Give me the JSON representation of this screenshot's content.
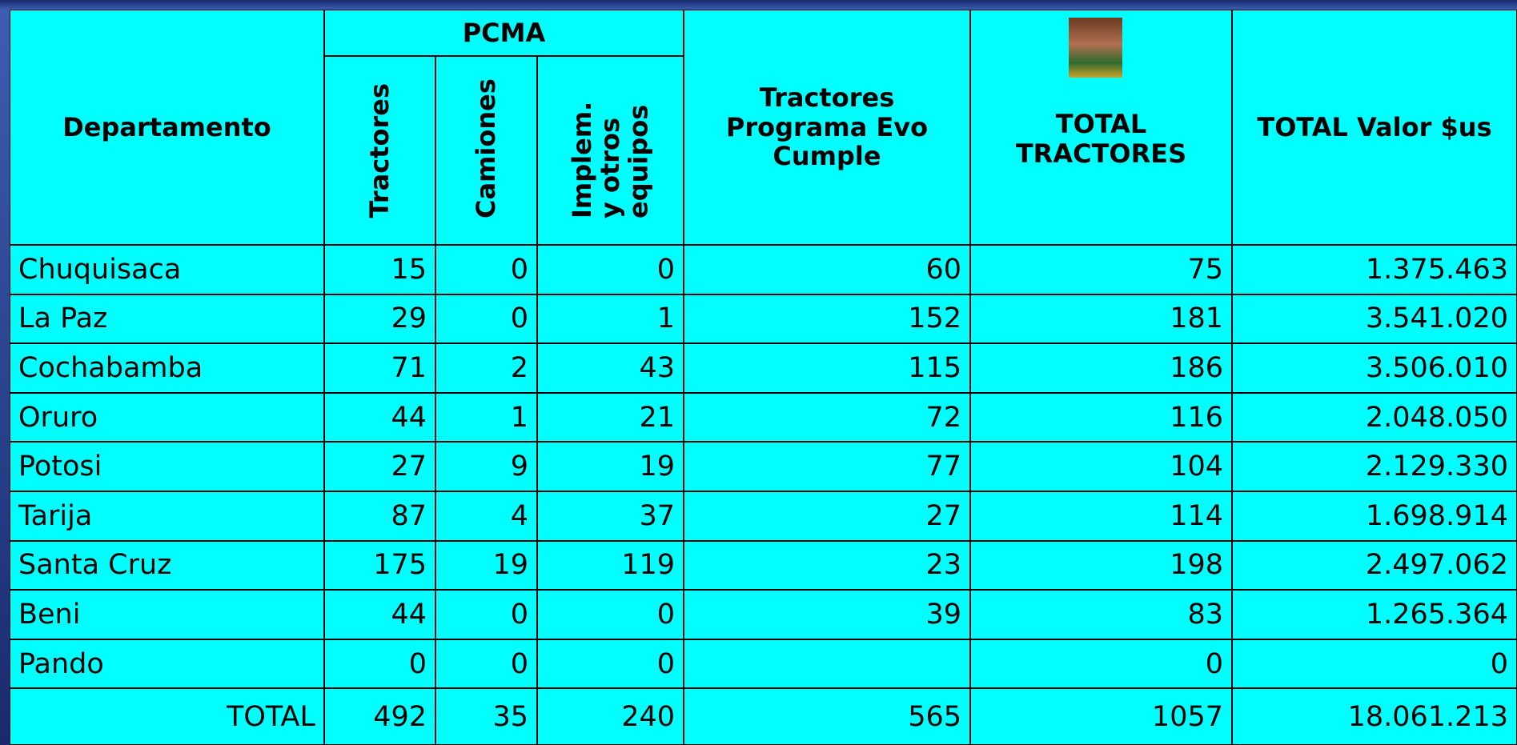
{
  "header": {
    "departamento": "Departamento",
    "pcma": "PCMA",
    "pcma_columns": [
      "Tractores",
      "Camiones",
      "Implem. y otros equipos"
    ],
    "evo": "Tractores Programa Evo Cumple",
    "total_tractores": "TOTAL TRACTORES",
    "total_valor": "TOTAL Valor $us"
  },
  "table": {
    "rows": [
      [
        "Chuquisaca",
        15,
        0,
        0,
        60,
        75,
        "1.375.463"
      ],
      [
        "La Paz",
        29,
        0,
        1,
        152,
        181,
        "3.541.020"
      ],
      [
        "Cochabamba",
        71,
        2,
        43,
        115,
        186,
        "3.506.010"
      ],
      [
        "Oruro",
        44,
        1,
        21,
        72,
        116,
        "2.048.050"
      ],
      [
        "Potosi",
        27,
        9,
        19,
        77,
        104,
        "2.129.330"
      ],
      [
        "Tarija",
        87,
        4,
        37,
        27,
        114,
        "1.698.914"
      ],
      [
        "Santa Cruz",
        175,
        19,
        119,
        23,
        198,
        "2.497.062"
      ],
      [
        "Beni",
        44,
        0,
        0,
        39,
        83,
        "1.265.364"
      ],
      [
        "Pando",
        0,
        0,
        0,
        null,
        0,
        "0"
      ]
    ],
    "total": [
      "TOTAL",
      492,
      35,
      240,
      565,
      1057,
      "18.061.213"
    ]
  }
}
